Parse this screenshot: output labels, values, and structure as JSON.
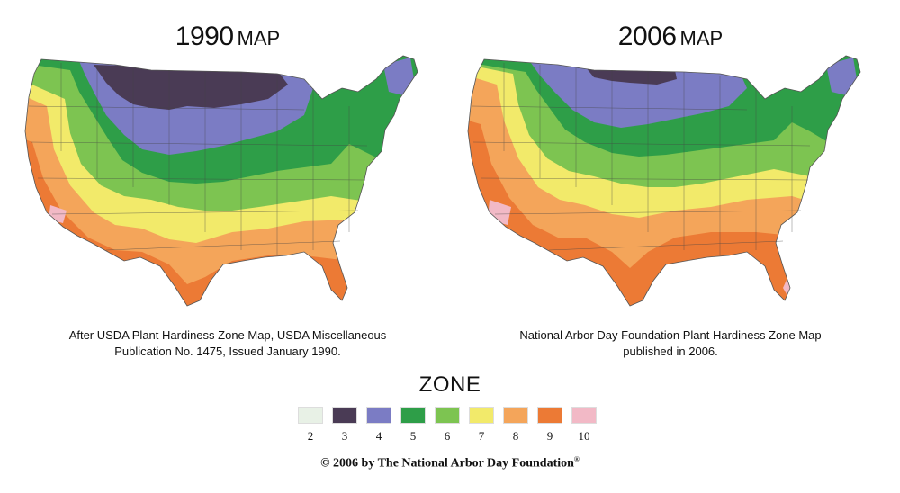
{
  "maps": [
    {
      "id": "1990",
      "title_year": "1990",
      "title_word": "MAP",
      "caption_lines": [
        "After USDA Plant Hardiness Zone Map, USDA Miscellaneous",
        "Publication No. 1475, Issued January 1990."
      ]
    },
    {
      "id": "2006",
      "title_year": "2006",
      "title_word": "MAP",
      "caption_lines": [
        "National Arbor Day Foundation Plant Hardiness Zone Map",
        "published in 2006."
      ]
    }
  ],
  "legend": {
    "title": "ZONE",
    "zones": [
      {
        "label": "2",
        "color": "#e8f1e6"
      },
      {
        "label": "3",
        "color": "#4a3b55"
      },
      {
        "label": "4",
        "color": "#7b7cc4"
      },
      {
        "label": "5",
        "color": "#2e9e48"
      },
      {
        "label": "6",
        "color": "#7dc451"
      },
      {
        "label": "7",
        "color": "#f2ea6a"
      },
      {
        "label": "8",
        "color": "#f4a55a"
      },
      {
        "label": "9",
        "color": "#ec7a35"
      },
      {
        "label": "10",
        "color": "#f2b9c6"
      }
    ]
  },
  "copyright": {
    "text": "© 2006 by The National Arbor Day Foundation",
    "mark": "®"
  }
}
